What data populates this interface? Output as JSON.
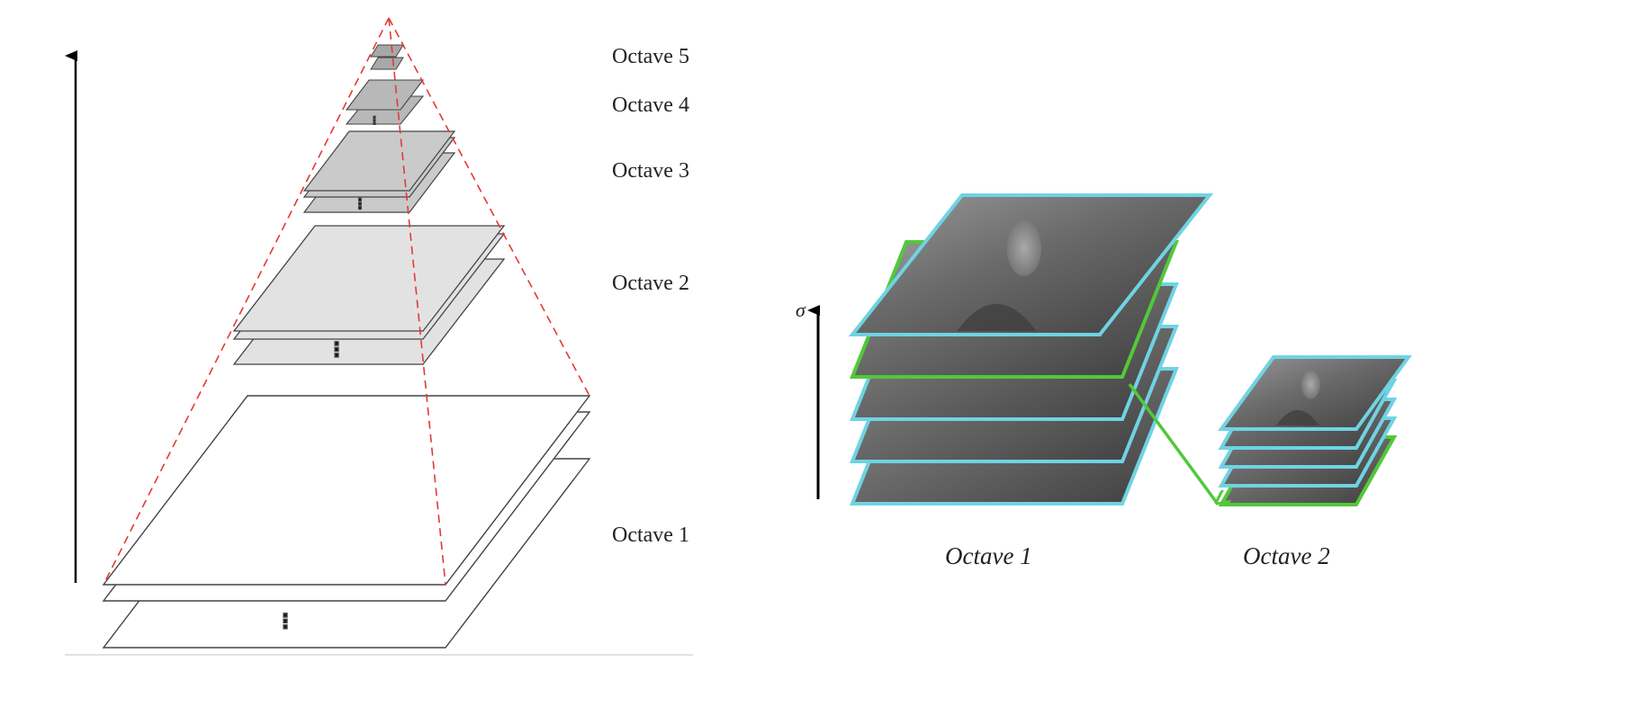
{
  "left_pyramid": {
    "octave_labels": [
      "Octave 5",
      "Octave 4",
      "Octave 3",
      "Octave 2",
      "Octave 1"
    ],
    "continuation_glyph": "⋮",
    "colors": {
      "dashed_guide": "#e53935",
      "octave_5_fill": "#a8a8a8",
      "octave_4_fill": "#b8b8b8",
      "octave_3_fill": "#cacaca",
      "octave_2_fill": "#e2e2e2",
      "octave_1_fill": "#ffffff",
      "plane_stroke": "#444444",
      "axis": "#000000"
    }
  },
  "right_stack": {
    "axis_label": "σ",
    "octave_labels": [
      "Octave 1",
      "Octave 2"
    ],
    "octave_1_layer_count": 5,
    "octave_2_layer_count": 5,
    "colors": {
      "layer_border": "#6fd3e3",
      "highlight_border": "#52c83a",
      "downsample_arrow": "#52c83a",
      "image_dark": "#4a4a4a",
      "image_light": "#9a9a9a"
    }
  }
}
